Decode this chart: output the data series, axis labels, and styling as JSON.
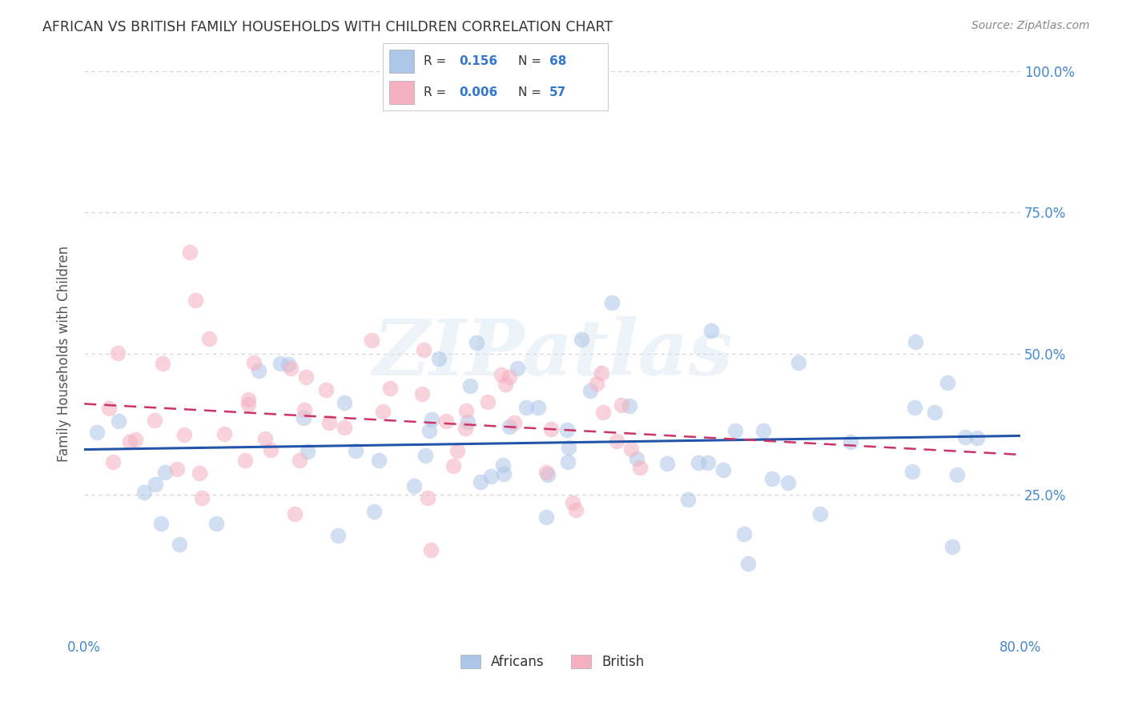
{
  "title": "AFRICAN VS BRITISH FAMILY HOUSEHOLDS WITH CHILDREN CORRELATION CHART",
  "source": "Source: ZipAtlas.com",
  "ylabel": "Family Households with Children",
  "xlim": [
    0.0,
    0.8
  ],
  "ylim": [
    0.0,
    1.0
  ],
  "xticks": [
    0.0,
    0.2,
    0.4,
    0.6,
    0.8
  ],
  "yticks": [
    0.0,
    0.25,
    0.5,
    0.75,
    1.0
  ],
  "africans_R": 0.156,
  "africans_N": 68,
  "british_R": 0.006,
  "british_N": 57,
  "africans_color": "#adc6e8",
  "africans_line_color": "#2255aa",
  "british_color": "#f4b0c0",
  "british_line_color": "#cc3366",
  "watermark": "ZIPatlas",
  "background_color": "#ffffff",
  "grid_color": "#cccccc",
  "legend_label_africans": "Africans",
  "legend_label_british": "British",
  "title_color": "#333333",
  "axis_label_color": "#555555",
  "tick_label_color": "#4488cc",
  "source_color": "#888888",
  "seed": 7
}
